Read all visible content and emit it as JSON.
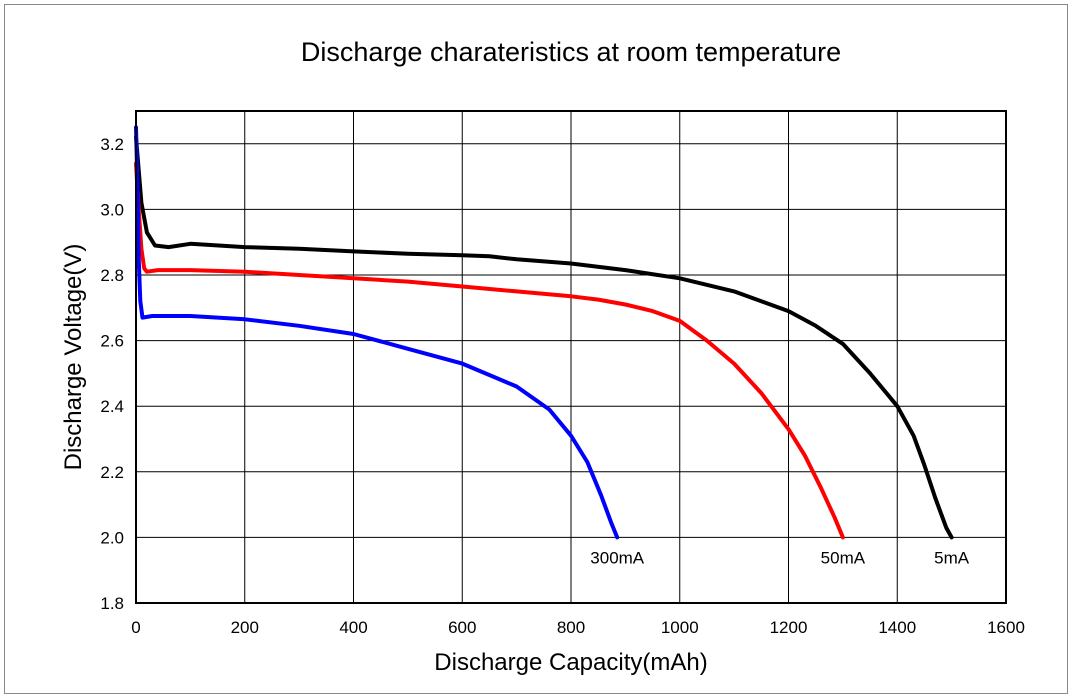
{
  "chart_data": {
    "type": "line",
    "title": "Discharge charateristics at room temperature",
    "xlabel": "Discharge Capacity(mAh)",
    "ylabel": "Discharge Voltage(V)",
    "xlim": [
      0,
      1600
    ],
    "ylim": [
      1.8,
      3.3
    ],
    "x_ticks": [
      0,
      200,
      400,
      600,
      800,
      1000,
      1200,
      1400,
      1600
    ],
    "x_tick_labels": [
      "0",
      "200",
      "400",
      "600",
      "800",
      "1000",
      "1200",
      "1400",
      "1600"
    ],
    "y_ticks": [
      1.8,
      2.0,
      2.2,
      2.4,
      2.6,
      2.8,
      3.0,
      3.2
    ],
    "y_tick_labels": [
      "1.8",
      "2.0",
      "2.2",
      "2.4",
      "2.6",
      "2.8",
      "3.0",
      "3.2"
    ],
    "grid": true,
    "legend": "none",
    "series": [
      {
        "name": "5mA",
        "color": "#000000",
        "points": [
          [
            0,
            3.22
          ],
          [
            5,
            3.12
          ],
          [
            10,
            3.02
          ],
          [
            20,
            2.93
          ],
          [
            35,
            2.89
          ],
          [
            60,
            2.885
          ],
          [
            100,
            2.895
          ],
          [
            200,
            2.885
          ],
          [
            300,
            2.88
          ],
          [
            400,
            2.872
          ],
          [
            500,
            2.865
          ],
          [
            600,
            2.86
          ],
          [
            650,
            2.857
          ],
          [
            700,
            2.848
          ],
          [
            800,
            2.835
          ],
          [
            900,
            2.815
          ],
          [
            1000,
            2.79
          ],
          [
            1100,
            2.75
          ],
          [
            1150,
            2.72
          ],
          [
            1200,
            2.69
          ],
          [
            1250,
            2.645
          ],
          [
            1300,
            2.59
          ],
          [
            1350,
            2.5
          ],
          [
            1400,
            2.4
          ],
          [
            1430,
            2.31
          ],
          [
            1450,
            2.22
          ],
          [
            1470,
            2.12
          ],
          [
            1490,
            2.03
          ],
          [
            1500,
            2.0
          ]
        ]
      },
      {
        "name": "50mA",
        "color": "#ff0000",
        "points": [
          [
            0,
            3.14
          ],
          [
            5,
            3.0
          ],
          [
            10,
            2.88
          ],
          [
            15,
            2.82
          ],
          [
            20,
            2.81
          ],
          [
            40,
            2.815
          ],
          [
            100,
            2.815
          ],
          [
            200,
            2.81
          ],
          [
            300,
            2.8
          ],
          [
            400,
            2.79
          ],
          [
            500,
            2.78
          ],
          [
            600,
            2.765
          ],
          [
            700,
            2.75
          ],
          [
            800,
            2.735
          ],
          [
            850,
            2.725
          ],
          [
            900,
            2.71
          ],
          [
            950,
            2.69
          ],
          [
            1000,
            2.66
          ],
          [
            1050,
            2.6
          ],
          [
            1100,
            2.53
          ],
          [
            1150,
            2.44
          ],
          [
            1200,
            2.33
          ],
          [
            1230,
            2.25
          ],
          [
            1260,
            2.15
          ],
          [
            1285,
            2.06
          ],
          [
            1300,
            2.0
          ]
        ]
      },
      {
        "name": "300mA",
        "color": "#0000ff",
        "points": [
          [
            0,
            3.25
          ],
          [
            3,
            3.05
          ],
          [
            5,
            2.85
          ],
          [
            8,
            2.72
          ],
          [
            12,
            2.67
          ],
          [
            30,
            2.675
          ],
          [
            100,
            2.675
          ],
          [
            200,
            2.665
          ],
          [
            300,
            2.645
          ],
          [
            400,
            2.62
          ],
          [
            500,
            2.575
          ],
          [
            600,
            2.53
          ],
          [
            700,
            2.46
          ],
          [
            760,
            2.39
          ],
          [
            800,
            2.31
          ],
          [
            830,
            2.23
          ],
          [
            855,
            2.13
          ],
          [
            875,
            2.04
          ],
          [
            885,
            2.0
          ]
        ]
      }
    ],
    "annotations": [
      "300mA",
      "50mA",
      "5mA"
    ]
  }
}
